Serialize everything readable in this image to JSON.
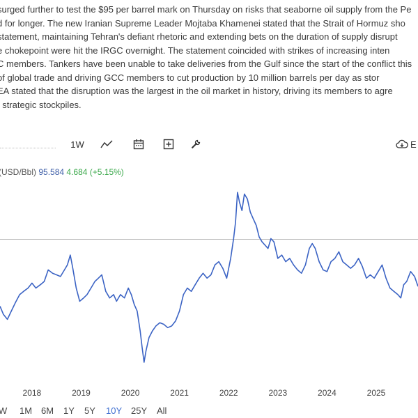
{
  "article": {
    "lines": [
      "surged further to test the $95 per barrel mark on Thursday on risks that seaborne oil supply from the Pe",
      "d for longer. The new Iranian Supreme Leader Mojtaba Khamenei stated that the Strait of Hormuz sho",
      "statement, maintaining Tehran's defiant rhetoric and extending bets on the duration of supply disrupt",
      "e chokepoint were hit the IRGC overnight. The statement coincided with strikes of increasing inten",
      "C members. Tankers have been unable to take deliveries from the Gulf since the start of the conflict this",
      "of global trade and driving GCC members to cut production by 10 million barrels per day as stor",
      "EA stated that the disruption was the largest in the oil market in history, driving its members to agre",
      "f strategic stockpiles."
    ]
  },
  "toolbar": {
    "period_label": "1W",
    "export_label": "E",
    "icons": [
      "line-chart-icon",
      "calendar-icon",
      "plus-box-icon",
      "wrench-icon",
      "cloud-download-icon"
    ]
  },
  "legend": {
    "label": "(USD/Bbl)",
    "price": "95.584",
    "change": "4.684 (+5.15%)"
  },
  "ranges": [
    "W",
    "1M",
    "6M",
    "1Y",
    "5Y",
    "10Y",
    "25Y",
    "All"
  ],
  "active_range": "10Y",
  "colors": {
    "line": "#3b63c4",
    "change_positive": "#3aa84a",
    "price_text": "#3f5fa8",
    "active_range": "#3f6fd1"
  },
  "chart_data": {
    "type": "line",
    "title": "",
    "xlabel": "",
    "ylabel": "",
    "x_tick_labels": [
      "2018",
      "2019",
      "2020",
      "2021",
      "2022",
      "2023",
      "2024",
      "2025"
    ],
    "xlim": [
      2017.35,
      2025.85
    ],
    "ylim": [
      10,
      130
    ],
    "reference_line": 95.584,
    "series": [
      {
        "x": [
          2017.35,
          2017.42,
          2017.5,
          2017.58,
          2017.66,
          2017.75,
          2017.83,
          2017.92,
          2018.0,
          2018.08,
          2018.17,
          2018.25,
          2018.33,
          2018.42,
          2018.5,
          2018.58,
          2018.66,
          2018.72,
          2018.78,
          2018.83,
          2018.9,
          2018.97,
          2019.05,
          2019.12,
          2019.2,
          2019.28,
          2019.35,
          2019.42,
          2019.5,
          2019.58,
          2019.66,
          2019.72,
          2019.8,
          2019.88,
          2019.96,
          2020.02,
          2020.08,
          2020.14,
          2020.2,
          2020.24,
          2020.28,
          2020.32,
          2020.38,
          2020.45,
          2020.52,
          2020.6,
          2020.68,
          2020.76,
          2020.84,
          2020.92,
          2021.0,
          2021.08,
          2021.16,
          2021.24,
          2021.32,
          2021.4,
          2021.48,
          2021.56,
          2021.64,
          2021.72,
          2021.8,
          2021.88,
          2021.96,
          2022.04,
          2022.1,
          2022.14,
          2022.18,
          2022.22,
          2022.27,
          2022.32,
          2022.38,
          2022.44,
          2022.5,
          2022.56,
          2022.62,
          2022.68,
          2022.74,
          2022.8,
          2022.86,
          2022.92,
          2023.0,
          2023.08,
          2023.16,
          2023.24,
          2023.32,
          2023.4,
          2023.48,
          2023.56,
          2023.64,
          2023.7,
          2023.76,
          2023.84,
          2023.92,
          2024.0,
          2024.08,
          2024.16,
          2024.24,
          2024.32,
          2024.4,
          2024.48,
          2024.56,
          2024.64,
          2024.72,
          2024.8,
          2024.88,
          2024.96,
          2025.04,
          2025.12,
          2025.2,
          2025.28,
          2025.36,
          2025.44,
          2025.5,
          2025.56,
          2025.62,
          2025.7,
          2025.78,
          2025.85
        ],
        "values": [
          55,
          50,
          47,
          52,
          57,
          62,
          64,
          66,
          69,
          66,
          68,
          70,
          77,
          75,
          74,
          73,
          77,
          80,
          86,
          78,
          66,
          58,
          60,
          62,
          66,
          70,
          72,
          74,
          64,
          60,
          62,
          58,
          62,
          60,
          66,
          62,
          56,
          52,
          40,
          30,
          21,
          28,
          36,
          40,
          43,
          45,
          44,
          42,
          43,
          46,
          52,
          62,
          66,
          64,
          68,
          72,
          75,
          72,
          74,
          80,
          82,
          78,
          72,
          84,
          96,
          106,
          124,
          118,
          113,
          123,
          120,
          112,
          108,
          104,
          97,
          94,
          92,
          90,
          96,
          94,
          84,
          86,
          82,
          84,
          80,
          77,
          75,
          80,
          90,
          93,
          90,
          82,
          77,
          76,
          82,
          84,
          88,
          82,
          80,
          78,
          80,
          84,
          79,
          72,
          74,
          72,
          76,
          80,
          72,
          66,
          64,
          62,
          60,
          68,
          70,
          76,
          73,
          67
        ]
      }
    ]
  }
}
